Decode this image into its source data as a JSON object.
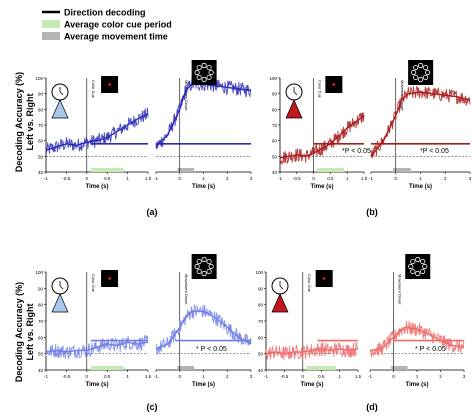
{
  "legend": [
    {
      "label": "Direction decoding",
      "color": "#000000"
    },
    {
      "label": "Average color cue period",
      "color": "#c6e9b5"
    },
    {
      "label": "Average movement time",
      "color": "#b4b4b4"
    }
  ],
  "ylabel_line1": "Decoding Accuracy (%)",
  "ylabel_line2": "Left vs. Right",
  "significance_label": "*P < 0.05",
  "significance_label_spaced": "* P < 0.05",
  "event_labels": {
    "color_cue": "Color Cue",
    "movement_onset": "Movement Onset"
  },
  "chart_data": [
    {
      "type": "line",
      "panel_label": "(a)",
      "color": "#2a2ab4",
      "xlabel": "Time (s)",
      "yticks": [
        40,
        50,
        60,
        70,
        80,
        90,
        100
      ],
      "ylim": [
        40,
        100
      ],
      "chance_level": 50,
      "windows": [
        {
          "event": "Color Cue",
          "xlim": [
            -1,
            1.5
          ],
          "xticks": [
            "-1",
            "-0.5",
            "0",
            "0.5",
            "1",
            "1.5"
          ],
          "x": [
            -1,
            -0.75,
            -0.5,
            -0.25,
            0,
            0.25,
            0.5,
            0.75,
            1,
            1.25,
            1.5
          ],
          "y": [
            54,
            56,
            58,
            57,
            59,
            60,
            62,
            66,
            70,
            74,
            77
          ],
          "significant_from": 0.1,
          "shade": [
            0.1,
            0.9
          ],
          "shade_color": "#c6e9b5"
        },
        {
          "event": "Movement Onset",
          "xlim": [
            -1,
            3
          ],
          "xticks": [
            "-1",
            "0",
            "1",
            "2",
            "3"
          ],
          "x": [
            -1,
            -0.5,
            0,
            0.25,
            0.5,
            1,
            1.5,
            2,
            2.5,
            3
          ],
          "y": [
            56,
            64,
            80,
            92,
            96,
            96,
            95,
            94,
            93,
            92
          ],
          "significant_from": -1,
          "shade": [
            -0.1,
            0.6
          ],
          "shade_color": "#b4b4b4"
        }
      ]
    },
    {
      "type": "line",
      "panel_label": "(b)",
      "color": "#a81c1c",
      "xlabel": "Time (s)",
      "yticks": [
        40,
        50,
        60,
        70,
        80,
        90,
        100
      ],
      "ylim": [
        40,
        100
      ],
      "chance_level": 50,
      "windows": [
        {
          "event": "Color Cue",
          "xlim": [
            -1,
            1.5
          ],
          "xticks": [
            "-1",
            "-0.5",
            "0",
            "0.5",
            "1",
            "1.5"
          ],
          "x": [
            -1,
            -0.75,
            -0.5,
            -0.25,
            0,
            0.25,
            0.5,
            0.75,
            1,
            1.25,
            1.5
          ],
          "y": [
            49,
            50,
            51,
            50,
            52,
            55,
            58,
            63,
            68,
            72,
            76
          ],
          "significant_from": 0,
          "shade": [
            0.1,
            0.9
          ],
          "shade_color": "#c6e9b5"
        },
        {
          "event": "Movement Onset",
          "xlim": [
            -1,
            3
          ],
          "xticks": [
            "-1",
            "0",
            "1",
            "2",
            "3"
          ],
          "x": [
            -1,
            -0.5,
            0,
            0.25,
            0.5,
            1,
            1.5,
            2,
            2.5,
            3
          ],
          "y": [
            50,
            60,
            76,
            86,
            90,
            91,
            90,
            89,
            88,
            86
          ],
          "significant_from": -1,
          "shade": [
            -0.1,
            0.6
          ],
          "shade_color": "#b4b4b4"
        }
      ]
    },
    {
      "type": "line",
      "panel_label": "(c)",
      "color": "#6f7fe6",
      "xlabel": "Time (s)",
      "yticks": [
        40,
        50,
        60,
        70,
        80,
        90,
        100
      ],
      "ylim": [
        40,
        100
      ],
      "chance_level": 50,
      "windows": [
        {
          "event": "Color Cue",
          "xlim": [
            -1,
            1.5
          ],
          "xticks": [
            "-1",
            "-0.5",
            "0",
            "0.5",
            "1",
            "1.5"
          ],
          "x": [
            -1,
            -0.75,
            -0.5,
            -0.25,
            0,
            0.25,
            0.5,
            0.75,
            1,
            1.25,
            1.5
          ],
          "y": [
            51,
            52,
            51,
            52,
            52,
            54,
            56,
            55,
            57,
            56,
            57
          ],
          "significant_from": 0.1,
          "shade": [
            0.1,
            0.9
          ],
          "shade_color": "#c6e9b5"
        },
        {
          "event": "Movement Onset",
          "xlim": [
            -1,
            3
          ],
          "xticks": [
            "-1",
            "0",
            "1",
            "2",
            "3"
          ],
          "x": [
            -1,
            -0.5,
            0,
            0.25,
            0.5,
            1,
            1.5,
            2,
            2.5,
            3
          ],
          "y": [
            53,
            56,
            66,
            72,
            76,
            76,
            72,
            66,
            60,
            56
          ],
          "significant_from": -0.2,
          "shade": [
            -0.1,
            0.6
          ],
          "shade_color": "#b4b4b4"
        }
      ]
    },
    {
      "type": "line",
      "panel_label": "(d)",
      "color": "#ee6a6a",
      "xlabel": "Time (s)",
      "yticks": [
        40,
        50,
        60,
        70,
        80,
        90,
        100
      ],
      "ylim": [
        40,
        100
      ],
      "chance_level": 50,
      "windows": [
        {
          "event": "Color Cue",
          "xlim": [
            -1,
            1.5
          ],
          "xticks": [
            "-1",
            "-0.5",
            "0",
            "0.5",
            "1",
            "1.5"
          ],
          "x": [
            -1,
            -0.75,
            -0.5,
            -0.25,
            0,
            0.25,
            0.5,
            0.75,
            1,
            1.25,
            1.5
          ],
          "y": [
            50,
            51,
            50,
            51,
            51,
            52,
            53,
            52,
            53,
            52,
            53
          ],
          "significant_from": 0.4,
          "shade": [
            0.1,
            0.9
          ],
          "shade_color": "#c6e9b5"
        },
        {
          "event": "Movement Onset",
          "xlim": [
            -1,
            3
          ],
          "xticks": [
            "-1",
            "0",
            "1",
            "2",
            "3"
          ],
          "x": [
            -1,
            -0.5,
            0,
            0.25,
            0.5,
            1,
            1.5,
            2,
            2.5,
            3
          ],
          "y": [
            52,
            53,
            60,
            64,
            66,
            65,
            62,
            58,
            55,
            54
          ],
          "significant_from": 0,
          "shade": [
            -0.1,
            0.6
          ],
          "shade_color": "#b4b4b4"
        }
      ]
    }
  ]
}
